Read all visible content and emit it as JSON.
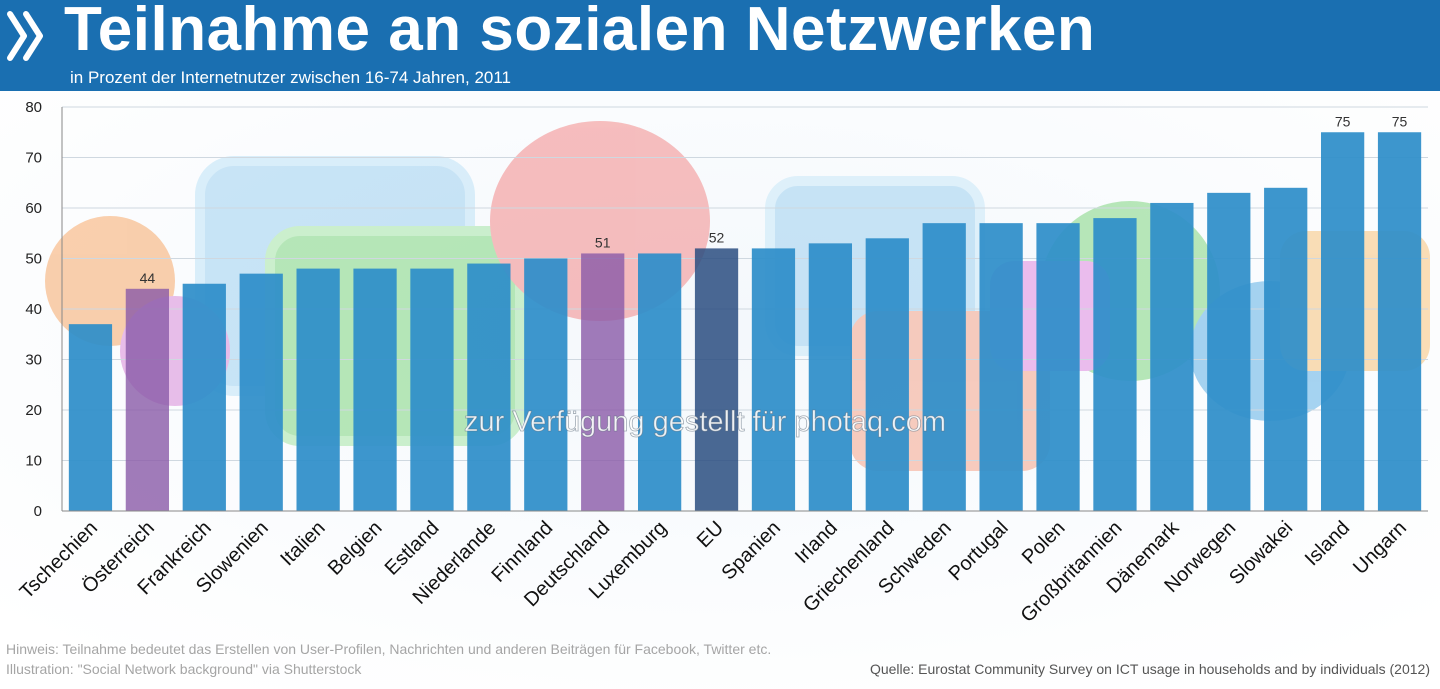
{
  "header": {
    "title": "Teilnahme an sozialen Netzwerken",
    "subtitle": "in Prozent der Internetnutzer zwischen 16-74 Jahren, 2011",
    "logo_icon": "oecd-chevrons-icon"
  },
  "colors": {
    "header_bg": "#1a6fb1",
    "bar": "#2e8ec9",
    "bar_highlight": "#8a5aa8",
    "bar_eu": "#2a4d80",
    "grid": "#cfd8e0"
  },
  "chart_data": {
    "type": "bar",
    "categories": [
      "Tschechien",
      "Österreich",
      "Frankreich",
      "Slowenien",
      "Italien",
      "Belgien",
      "Estland",
      "Niederlande",
      "Finnland",
      "Deutschland",
      "Luxemburg",
      "EU",
      "Spanien",
      "Irland",
      "Griechenland",
      "Schweden",
      "Portugal",
      "Polen",
      "Großbritannien",
      "Dänemark",
      "Norwegen",
      "Slowakei",
      "Island",
      "Ungarn"
    ],
    "values": [
      37,
      44,
      45,
      47,
      48,
      48,
      48,
      49,
      50,
      51,
      51,
      52,
      52,
      53,
      54,
      57,
      57,
      57,
      58,
      61,
      63,
      64,
      75,
      75
    ],
    "data_labels": {
      "1": "44",
      "9": "51",
      "11": "52",
      "22": "75",
      "23": "75"
    },
    "highlight_categories": [
      "Österreich",
      "Deutschland"
    ],
    "eu_category": "EU",
    "ylim": [
      0,
      80
    ],
    "yticks": [
      0,
      10,
      20,
      30,
      40,
      50,
      60,
      70,
      80
    ],
    "grid": true,
    "legend": "none"
  },
  "watermark": "zur Verfügung gestellt für photaq.com",
  "footer": {
    "note": "Hinweis: Teilnahme bedeutet das Erstellen von User-Profilen, Nachrichten und anderen Beiträgen für Facebook, Twitter etc.",
    "illustration": "Illustration: \"Social Network background\" via Shutterstock",
    "source": "Quelle:  Eurostat Community Survey on ICT usage in households and by individuals (2012)"
  }
}
